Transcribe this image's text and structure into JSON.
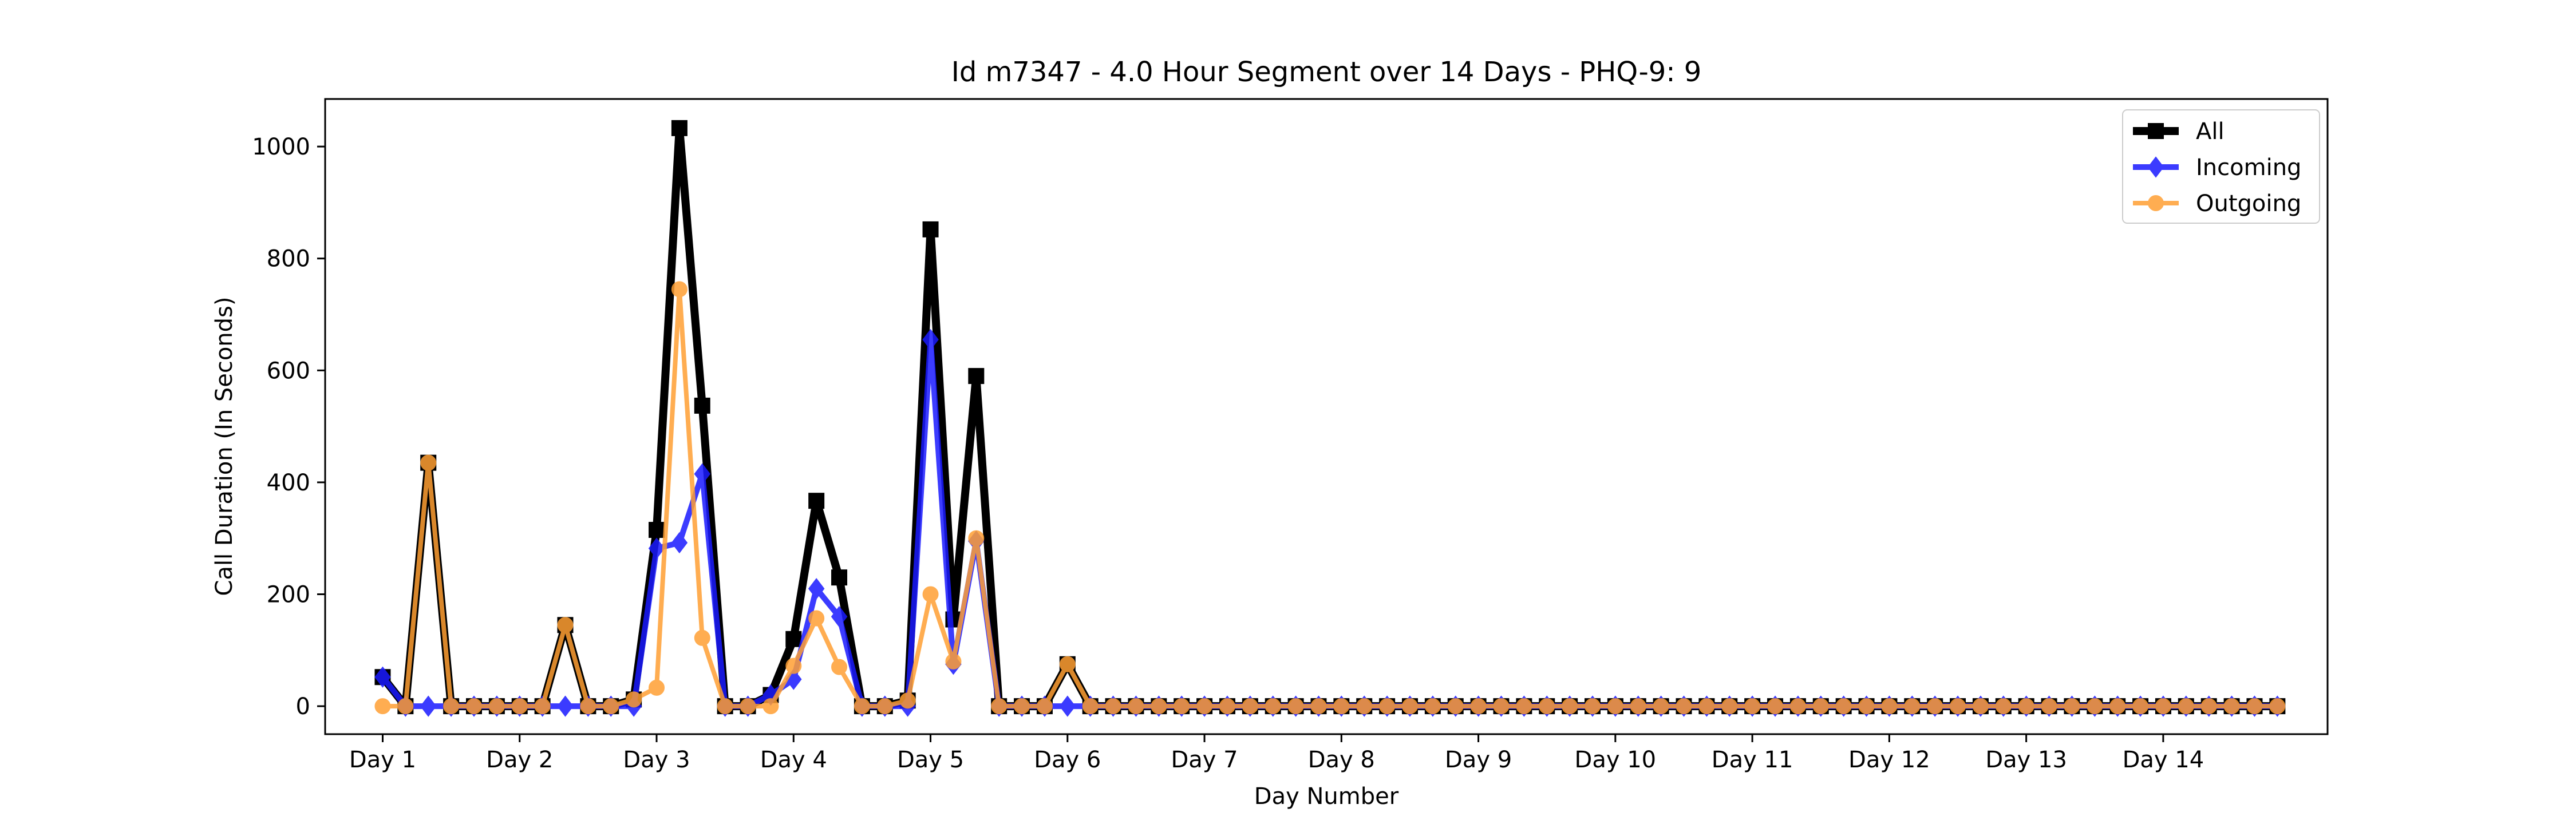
{
  "chart_data": {
    "type": "line",
    "title": "Id m7347 - 4.0 Hour Segment over 14 Days - PHQ-9: 9",
    "xlabel": "Day Number",
    "ylabel": "Call Duration (In Seconds)",
    "ylim": [
      -50,
      1085
    ],
    "yticks": [
      0,
      200,
      400,
      600,
      800,
      1000
    ],
    "xlim": [
      0.58,
      15.2
    ],
    "xticks": [
      1,
      2,
      3,
      4,
      5,
      6,
      7,
      8,
      9,
      10,
      11,
      12,
      13,
      14
    ],
    "xtick_labels": [
      "Day 1",
      "Day 2",
      "Day 3",
      "Day 4",
      "Day 5",
      "Day 6",
      "Day 7",
      "Day 8",
      "Day 9",
      "Day 10",
      "Day 11",
      "Day 12",
      "Day 13",
      "Day 14"
    ],
    "x_start": 1.0,
    "x_step": 0.16667,
    "grid": false,
    "legend_position": "top-right",
    "series": [
      {
        "name": "All",
        "color": "#000000",
        "marker": "square",
        "values": [
          52,
          0,
          435,
          0,
          0,
          0,
          0,
          0,
          145,
          0,
          0,
          12,
          315,
          1033,
          537,
          0,
          0,
          20,
          120,
          367,
          230,
          0,
          0,
          10,
          852,
          155,
          590,
          0,
          0,
          0,
          75,
          0,
          0,
          0,
          0,
          0,
          0,
          0,
          0,
          0,
          0,
          0,
          0,
          0,
          0,
          0,
          0,
          0,
          0,
          0,
          0,
          0,
          0,
          0,
          0,
          0,
          0,
          0,
          0,
          0,
          0,
          0,
          0,
          0,
          0,
          0,
          0,
          0,
          0,
          0,
          0,
          0,
          0,
          0,
          0,
          0,
          0,
          0,
          0,
          0,
          0,
          0,
          0,
          0
        ]
      },
      {
        "name": "Incoming",
        "color": "#1a1aff",
        "marker": "diamond",
        "values": [
          52,
          0,
          0,
          0,
          0,
          0,
          0,
          0,
          0,
          0,
          0,
          0,
          282,
          292,
          415,
          0,
          0,
          20,
          48,
          210,
          160,
          0,
          0,
          0,
          655,
          75,
          295,
          0,
          0,
          0,
          0,
          0,
          0,
          0,
          0,
          0,
          0,
          0,
          0,
          0,
          0,
          0,
          0,
          0,
          0,
          0,
          0,
          0,
          0,
          0,
          0,
          0,
          0,
          0,
          0,
          0,
          0,
          0,
          0,
          0,
          0,
          0,
          0,
          0,
          0,
          0,
          0,
          0,
          0,
          0,
          0,
          0,
          0,
          0,
          0,
          0,
          0,
          0,
          0,
          0,
          0,
          0,
          0,
          0
        ]
      },
      {
        "name": "Outgoing",
        "color": "#ff9f33",
        "marker": "circle",
        "values": [
          0,
          0,
          435,
          0,
          0,
          0,
          0,
          0,
          145,
          0,
          0,
          12,
          33,
          745,
          122,
          0,
          0,
          0,
          72,
          157,
          70,
          0,
          0,
          10,
          200,
          80,
          300,
          0,
          0,
          0,
          75,
          0,
          0,
          0,
          0,
          0,
          0,
          0,
          0,
          0,
          0,
          0,
          0,
          0,
          0,
          0,
          0,
          0,
          0,
          0,
          0,
          0,
          0,
          0,
          0,
          0,
          0,
          0,
          0,
          0,
          0,
          0,
          0,
          0,
          0,
          0,
          0,
          0,
          0,
          0,
          0,
          0,
          0,
          0,
          0,
          0,
          0,
          0,
          0,
          0,
          0,
          0,
          0,
          0
        ]
      }
    ]
  }
}
